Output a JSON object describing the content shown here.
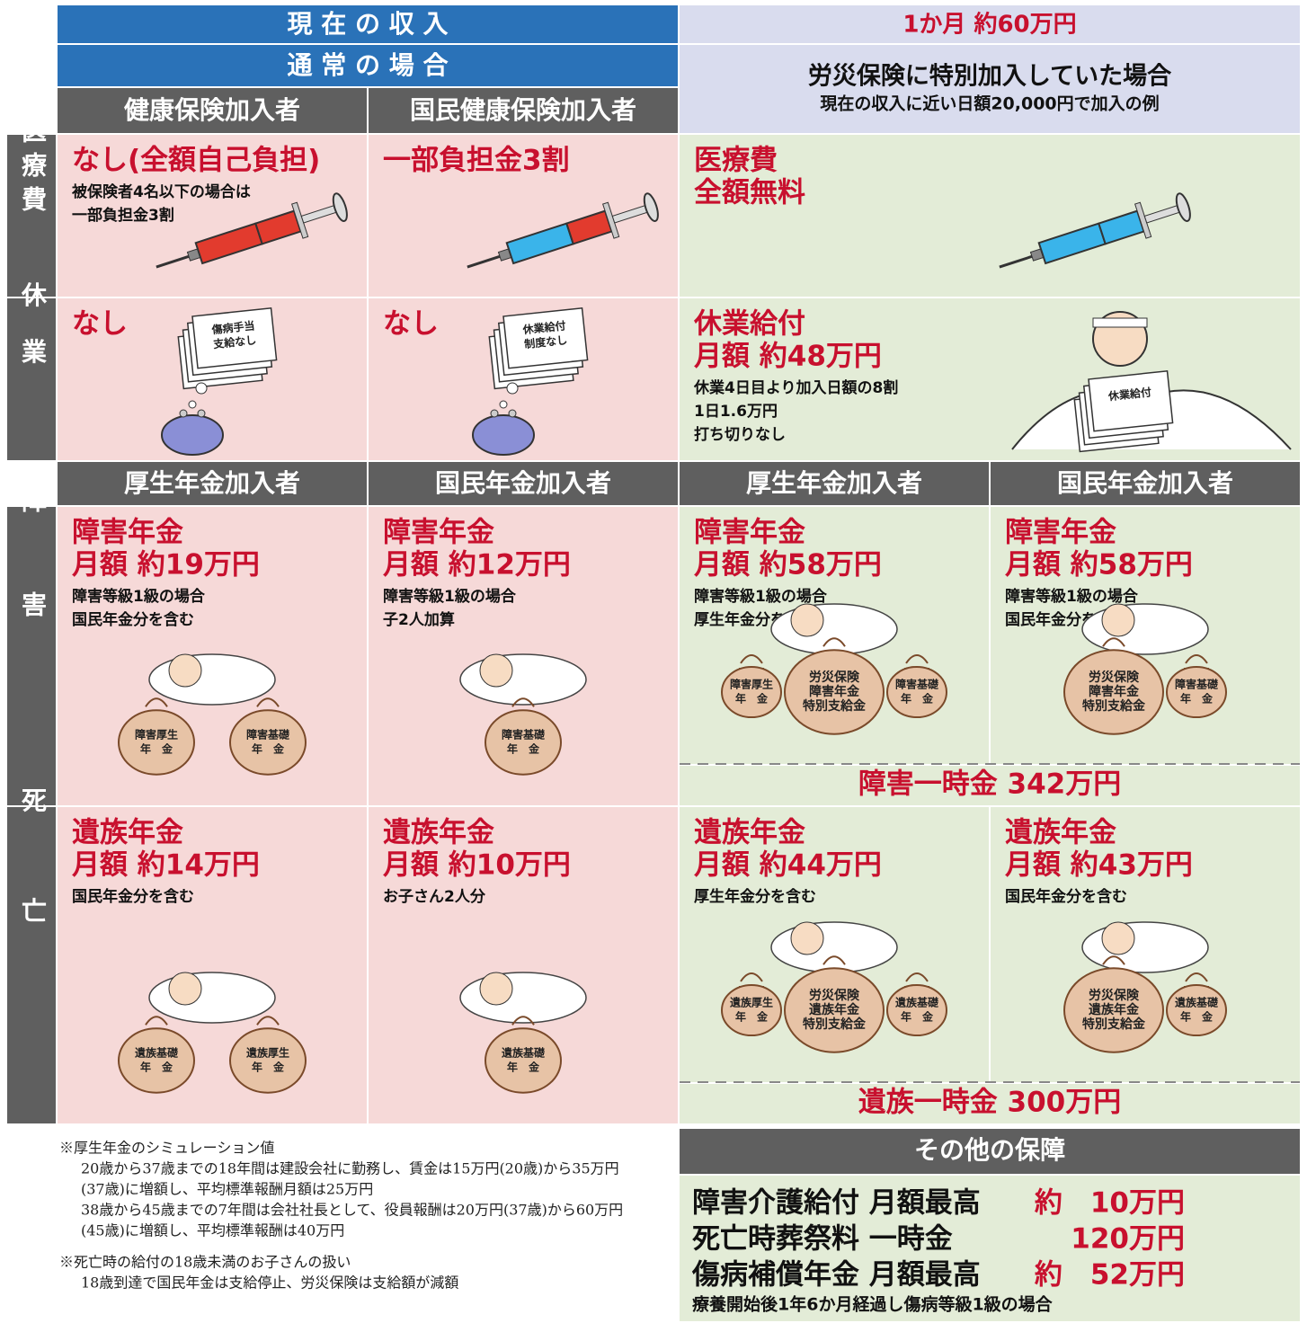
{
  "header": {
    "current_income": "現 在 の 収 入",
    "normal": "通 常 の 場 合",
    "income_amount": "1か月 約60万円",
    "special": "労災保険に特別加入していた場合",
    "special_note": "現在の収入に近い日額20,000円で加入の例",
    "health_cols": [
      "健康保険加入者",
      "国民健康保険加入者"
    ],
    "pension_cols": [
      "厚生年金加入者",
      "国民年金加入者",
      "厚生年金加入者",
      "国民年金加入者"
    ]
  },
  "rows": [
    {
      "label": "医療費",
      "cells": [
        {
          "title": [
            "なし(全額自己負担)"
          ],
          "note": [
            "被保険者4名以下の場合は",
            "一部負担金3割"
          ]
        },
        {
          "title": [
            "一部負担金3割"
          ]
        },
        {
          "title": [
            "医療費",
            "全額無料"
          ]
        }
      ]
    },
    {
      "label": "休業",
      "cells": [
        {
          "title": [
            "なし"
          ],
          "tag": [
            "傷病手当",
            "支給なし"
          ]
        },
        {
          "title": [
            "なし"
          ],
          "tag": [
            "休業給付",
            "制度なし"
          ]
        },
        {
          "title": [
            "休業給付",
            "月額 約48万円"
          ],
          "note": [
            "休業4日目より加入日額の8割",
            "1日1.6万円",
            "打ち切りなし"
          ],
          "tag": [
            "休業給付"
          ]
        }
      ]
    },
    {
      "label": "障害",
      "lump": "障害一時金 342万円",
      "cells": [
        {
          "title": [
            "障害年金",
            "月額 約19万円"
          ],
          "note": [
            "障害等級1級の場合",
            "国民年金分を含む"
          ],
          "bags": [
            [
              "障害厚生",
              "年　金"
            ],
            [
              "障害基礎",
              "年　金"
            ]
          ]
        },
        {
          "title": [
            "障害年金",
            "月額 約12万円"
          ],
          "note": [
            "障害等級1級の場合",
            "子2人加算"
          ],
          "bags": [
            [
              "障害基礎",
              "年　金"
            ]
          ]
        },
        {
          "title": [
            "障害年金",
            "月額 約58万円"
          ],
          "note": [
            "障害等級1級の場合",
            "厚生年金分を含む"
          ],
          "bags": [
            [
              "障害厚生",
              "年　金"
            ],
            [
              "労災保険",
              "障害年金",
              "特別支給金"
            ],
            [
              "障害基礎",
              "年　金"
            ]
          ]
        },
        {
          "title": [
            "障害年金",
            "月額 約58万円"
          ],
          "note": [
            "障害等級1級の場合",
            "国民年金分を含む"
          ],
          "bags": [
            [
              "労災保険",
              "障害年金",
              "特別支給金"
            ],
            [
              "障害基礎",
              "年　金"
            ]
          ]
        }
      ]
    },
    {
      "label": "死亡",
      "lump": "遺族一時金 300万円",
      "cells": [
        {
          "title": [
            "遺族年金",
            "月額 約14万円"
          ],
          "note": [
            "国民年金分を含む"
          ],
          "bags": [
            [
              "遺族基礎",
              "年　金"
            ],
            [
              "遺族厚生",
              "年　金"
            ]
          ]
        },
        {
          "title": [
            "遺族年金",
            "月額 約10万円"
          ],
          "note": [
            "お子さん2人分"
          ],
          "bags": [
            [
              "遺族基礎",
              "年　金"
            ]
          ]
        },
        {
          "title": [
            "遺族年金",
            "月額 約44万円"
          ],
          "note": [
            "厚生年金分を含む"
          ],
          "bags": [
            [
              "遺族厚生",
              "年　金"
            ],
            [
              "労災保険",
              "遺族年金",
              "特別支給金"
            ],
            [
              "遺族基礎",
              "年　金"
            ]
          ]
        },
        {
          "title": [
            "遺族年金",
            "月額 約43万円"
          ],
          "note": [
            "国民年金分を含む"
          ],
          "bags": [
            [
              "労災保険",
              "遺族年金",
              "特別支給金"
            ],
            [
              "遺族基礎",
              "年　金"
            ]
          ]
        }
      ]
    }
  ],
  "notes": [
    {
      "head": "※厚生年金のシミュレーション値",
      "lines": [
        "20歳から37歳までの18年間は建設会社に勤務し、賃金は15万円(20歳)から35万円",
        "(37歳)に増額し、平均標準報酬月額は25万円",
        "38歳から45歳までの7年間は会社社長として、役員報酬は20万円(37歳)から60万円",
        "(45歳)に増額し、平均標準報酬は40万円"
      ]
    },
    {
      "head": "※死亡時の給付の18歳未満のお子さんの扱い",
      "lines": [
        "18歳到達で国民年金は支給停止、労災保険は支給額が減額"
      ]
    }
  ],
  "other": {
    "title": "その他の保障",
    "items": [
      {
        "label": "障害介護給付 月額最高",
        "amount": "約　10万円"
      },
      {
        "label": "死亡時葬祭料 一時金",
        "amount": "120万円"
      },
      {
        "label": "傷病補償年金 月額最高",
        "amount": "約　52万円"
      }
    ],
    "note": "療養開始後1年6か月経過し傷病等級1級の場合"
  }
}
